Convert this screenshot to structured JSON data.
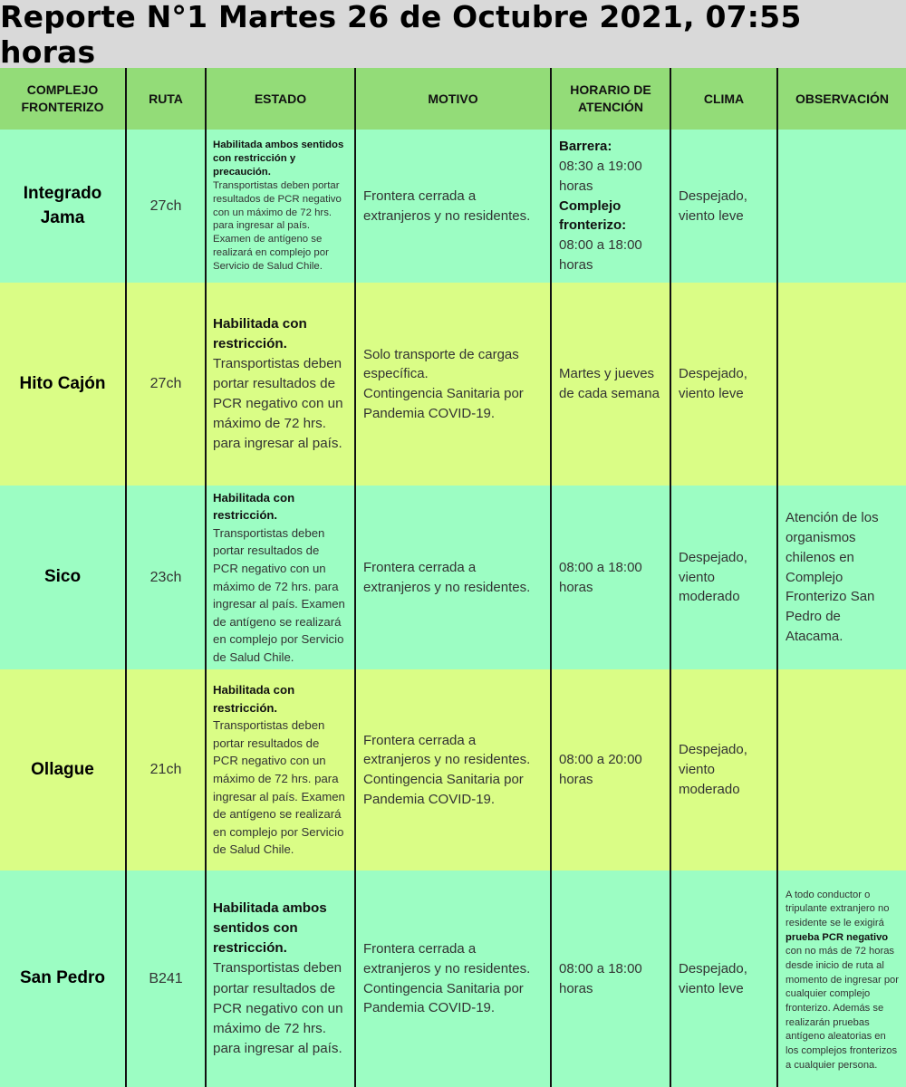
{
  "title": "Reporte N°1 Martes 26 de Octubre 2021, 07:55 horas",
  "headers": {
    "complejo": "COMPLEJO FRONTERIZO",
    "ruta": "RUTA",
    "estado": "ESTADO",
    "motivo": "MOTIVO",
    "horario": "HORARIO DE ATENCIÓN",
    "clima": "CLIMA",
    "observacion": "OBSERVACIÓN"
  },
  "rows": [
    {
      "complejo": "Integrado Jama",
      "ruta": "27ch",
      "estado_bold": "Habilitada ambos sentidos con restricción y precaución.",
      "estado_text": "Transportistas deben portar resultados de PCR negativo con un máximo de 72 hrs. para ingresar al país. Examen de antígeno se realizará en complejo por Servicio de Salud Chile.",
      "motivo": "Frontera cerrada a extranjeros y no residentes.",
      "horario_label_1": "Barrera:",
      "horario_text_1": "08:30 a 19:00 horas",
      "horario_label_2": "Complejo fronterizo:",
      "horario_text_2": "08:00 a 18:00 horas",
      "clima": "Despejado, viento leve",
      "observacion": ""
    },
    {
      "complejo": "Hito Cajón",
      "ruta": "27ch",
      "estado_bold": "Habilitada con restricción.",
      "estado_text": "Transportistas deben portar resultados de PCR negativo con un máximo de 72 hrs. para ingresar al país.",
      "motivo_1": "Solo transporte de cargas específica.",
      "motivo_2": "Contingencia Sanitaria por Pandemia COVID-19.",
      "horario": "Martes y jueves de cada semana",
      "clima": "Despejado, viento leve",
      "observacion": ""
    },
    {
      "complejo": "Sico",
      "ruta": "23ch",
      "estado_bold": "Habilitada con restricción.",
      "estado_text": "Transportistas deben portar resultados de PCR negativo con un máximo de 72 hrs. para ingresar al país. Examen de antígeno se realizará en complejo por Servicio de Salud Chile.",
      "motivo": "Frontera cerrada a extranjeros y no residentes.",
      "horario": "08:00 a 18:00 horas",
      "clima": "Despejado, viento moderado",
      "observacion": "Atención de los organismos chilenos en Complejo Fronterizo San Pedro de Atacama."
    },
    {
      "complejo": "Ollague",
      "ruta": "21ch",
      "estado_bold": "Habilitada con restricción.",
      "estado_text": "Transportistas deben portar resultados de PCR negativo con un máximo de 72 hrs. para ingresar al país. Examen de antígeno se realizará en complejo por Servicio de Salud Chile.",
      "motivo_1": "Frontera cerrada a extranjeros y no residentes.",
      "motivo_2": "Contingencia Sanitaria por Pandemia COVID-19.",
      "horario": "08:00 a 20:00 horas",
      "clima": "Despejado, viento moderado",
      "observacion": ""
    },
    {
      "complejo": "San Pedro",
      "ruta": "B241",
      "estado_bold": "Habilitada ambos sentidos con restricción.",
      "estado_text": "Transportistas deben portar resultados de PCR negativo con un máximo de 72 hrs. para ingresar al país.",
      "motivo_1": "Frontera cerrada a extranjeros y no residentes.",
      "motivo_2": "Contingencia Sanitaria por Pandemia COVID-19.",
      "horario": "08:00 a 18:00 horas",
      "clima": "Despejado, viento leve",
      "observacion_1": "A todo conductor o tripulante extranjero no residente se le exigirá",
      "observacion_bold": "prueba PCR negativo",
      "observacion_2": "con no más de 72 horas desde inicio de ruta al momento de ingresar por cualquier complejo fronterizo. Además se realizarán pruebas antígeno aleatorias en los complejos fronterizos a cualquier persona."
    }
  ]
}
